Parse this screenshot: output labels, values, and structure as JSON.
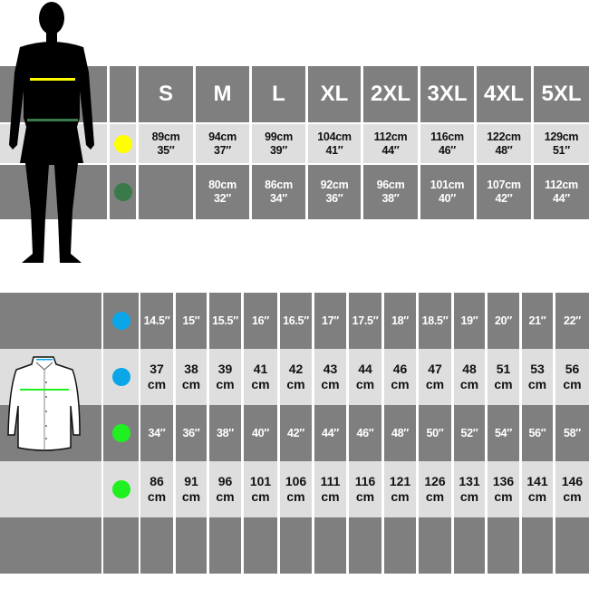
{
  "body_chart": {
    "sizes": [
      "S",
      "M",
      "L",
      "XL",
      "2XL",
      "3XL",
      "4XL",
      "5XL"
    ],
    "rows": [
      {
        "marker_color": "#ffff00",
        "values": [
          "89cm\n35″",
          "94cm\n37″",
          "99cm\n39″",
          "104cm\n41″",
          "112cm\n44″",
          "116cm\n46″",
          "122cm\n48″",
          "129cm\n51″"
        ]
      },
      {
        "marker_color": "#3a7a4a",
        "values": [
          "",
          "80cm\n32″",
          "86cm\n34″",
          "92cm\n36″",
          "96cm\n38″",
          "101cm\n40″",
          "107cm\n42″",
          "112cm\n44″"
        ]
      }
    ]
  },
  "shirt_chart": {
    "rows": [
      {
        "marker_color": "#0aa6e8",
        "values": [
          "14.5″",
          "15″",
          "15.5″",
          "16″",
          "16.5″",
          "17″",
          "17.5″",
          "18″",
          "18.5″",
          "19″",
          "20″",
          "21″",
          "22″"
        ]
      },
      {
        "marker_color": "#0aa6e8",
        "values": [
          "37\ncm",
          "38\ncm",
          "39\ncm",
          "41\ncm",
          "42\ncm",
          "43\ncm",
          "44\ncm",
          "46\ncm",
          "47\ncm",
          "48\ncm",
          "51\ncm",
          "53\ncm",
          "56\ncm"
        ]
      },
      {
        "marker_color": "#1ff01f",
        "values": [
          "34″",
          "36″",
          "38″",
          "40″",
          "42″",
          "44″",
          "46″",
          "48″",
          "50″",
          "52″",
          "54″",
          "56″",
          "58″"
        ]
      },
      {
        "marker_color": "#1ff01f",
        "values": [
          "86\ncm",
          "91\ncm",
          "96\ncm",
          "101\ncm",
          "106\ncm",
          "111\ncm",
          "116\ncm",
          "121\ncm",
          "126\ncm",
          "131\ncm",
          "136\ncm",
          "141\ncm",
          "146\ncm"
        ]
      },
      {
        "marker_color": "",
        "values": [
          "",
          "",
          "",
          "",
          "",
          "",
          "",
          "",
          "",
          "",
          "",
          "",
          ""
        ]
      }
    ]
  }
}
